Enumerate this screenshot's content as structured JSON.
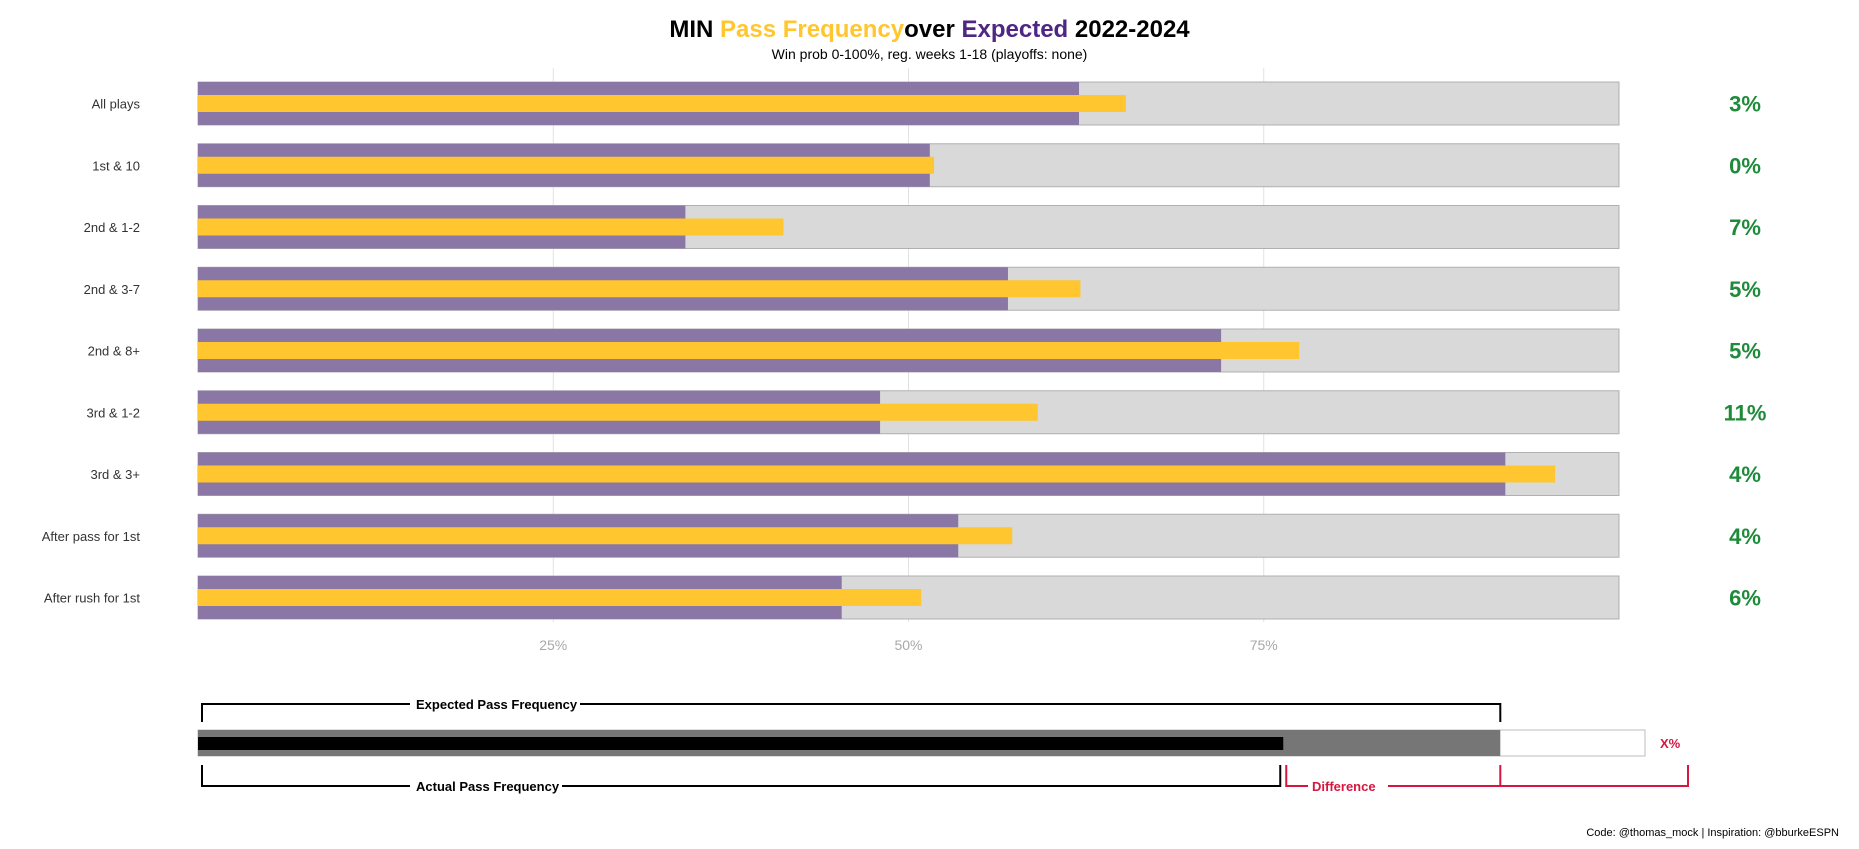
{
  "title": {
    "team": "MIN",
    "pass": "Pass",
    "frequency": "Frequency",
    "over": "over",
    "expected": "Expected",
    "years": "2022-2024"
  },
  "subtitle": "Win prob 0-100%, reg. weeks 1-18 (playoffs: none)",
  "caption": "Code: @thomas_mock | Inspiration: @bburkeESPN",
  "colors": {
    "actual": "#FFC62F",
    "expected": "#8B77A6",
    "track": "#D9D9D9",
    "track_border": "#B0B0B0",
    "diff_text": "#1E8A3A",
    "legend_red": "#D6163F",
    "title_purple": "#4F2683"
  },
  "chart_data": {
    "type": "bar",
    "categories": [
      "All plays",
      "1st & 10",
      "2nd & 1-2",
      "2nd & 3-7",
      "2nd & 8+",
      "3rd & 1-2",
      "3rd & 3+",
      "After pass for 1st",
      "After rush for 1st"
    ],
    "series": [
      {
        "name": "Expected",
        "values": [
          62,
          51.5,
          34.3,
          57,
          72,
          48,
          92,
          53.5,
          45.3
        ]
      },
      {
        "name": "Pass Frequency",
        "values": [
          65.3,
          51.8,
          41.2,
          62.1,
          77.5,
          59.1,
          95.5,
          57.3,
          50.9
        ]
      }
    ],
    "diff_labels": [
      "3%",
      "0%",
      "7%",
      "5%",
      "5%",
      "11%",
      "4%",
      "4%",
      "6%"
    ],
    "xlim": [
      0,
      100
    ],
    "xticks": [
      25,
      50,
      75
    ],
    "xtick_labels": [
      "25%",
      "50%",
      "75%"
    ],
    "grid": true
  },
  "legend": {
    "expected_label": "Expected Pass Frequency",
    "actual_label": "Actual Pass Frequency",
    "difference_label": "Difference",
    "x_label": "X%",
    "expected_value": 90,
    "actual_value": 75
  }
}
